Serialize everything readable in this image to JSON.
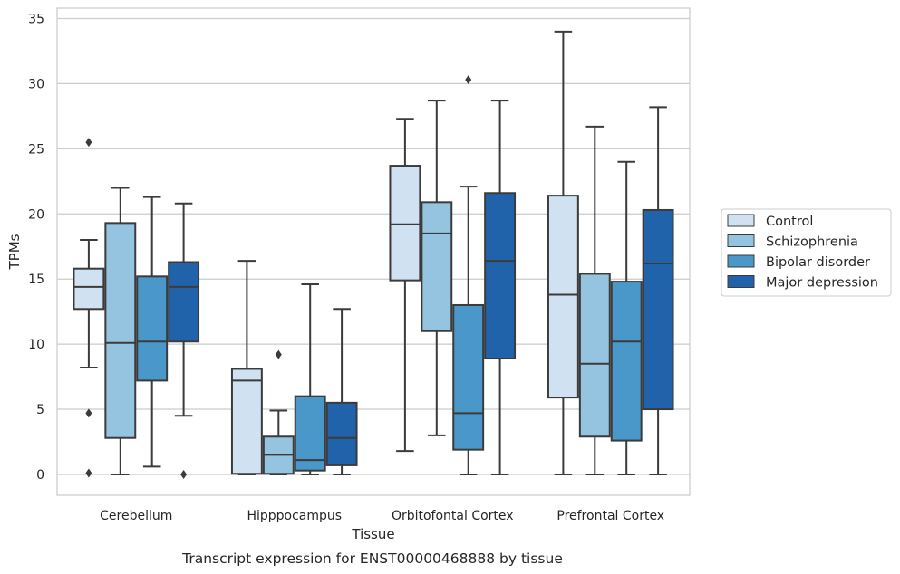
{
  "caption": "Transcript expression for ENST00000468888 by tissue",
  "chart_data": {
    "type": "box",
    "xlabel": "Tissue",
    "ylabel": "TPMs",
    "ylim": [
      -1.6,
      35.8
    ],
    "yticks": [
      0,
      5,
      10,
      15,
      20,
      25,
      30,
      35
    ],
    "grid": "horizontal",
    "legend_position": "right",
    "categories": [
      "Cerebellum",
      "Hipppocampus",
      "Orbitofontal Cortex",
      "Prefrontal Cortex"
    ],
    "series": [
      {
        "name": "Control",
        "color": "#d0e1f2",
        "boxes": [
          {
            "whisker_low": 8.2,
            "q1": 12.7,
            "median": 14.4,
            "q3": 15.8,
            "whisker_high": 18.0,
            "outliers": [
              25.5,
              4.7,
              0.1
            ]
          },
          {
            "whisker_low": 0.0,
            "q1": 0.05,
            "median": 7.2,
            "q3": 8.1,
            "whisker_high": 16.4,
            "outliers": []
          },
          {
            "whisker_low": 1.8,
            "q1": 14.9,
            "median": 19.2,
            "q3": 23.7,
            "whisker_high": 27.3,
            "outliers": []
          },
          {
            "whisker_low": 0.0,
            "q1": 5.9,
            "median": 13.8,
            "q3": 21.4,
            "whisker_high": 34.0,
            "outliers": []
          }
        ]
      },
      {
        "name": "Schizophrenia",
        "color": "#94c4df",
        "boxes": [
          {
            "whisker_low": 0.0,
            "q1": 2.8,
            "median": 10.1,
            "q3": 19.3,
            "whisker_high": 22.0,
            "outliers": []
          },
          {
            "whisker_low": 0.0,
            "q1": 0.05,
            "median": 1.5,
            "q3": 2.9,
            "whisker_high": 4.9,
            "outliers": [
              9.2
            ]
          },
          {
            "whisker_low": 3.0,
            "q1": 11.0,
            "median": 18.5,
            "q3": 20.9,
            "whisker_high": 28.7,
            "outliers": []
          },
          {
            "whisker_low": 0.0,
            "q1": 2.9,
            "median": 8.5,
            "q3": 15.4,
            "whisker_high": 26.7,
            "outliers": []
          }
        ]
      },
      {
        "name": "Bipolar disorder",
        "color": "#4a98c9",
        "boxes": [
          {
            "whisker_low": 0.6,
            "q1": 7.2,
            "median": 10.2,
            "q3": 15.2,
            "whisker_high": 21.3,
            "outliers": []
          },
          {
            "whisker_low": 0.0,
            "q1": 0.3,
            "median": 1.1,
            "q3": 6.0,
            "whisker_high": 14.6,
            "outliers": []
          },
          {
            "whisker_low": 0.0,
            "q1": 1.9,
            "median": 4.7,
            "q3": 13.0,
            "whisker_high": 22.1,
            "outliers": [
              30.3
            ]
          },
          {
            "whisker_low": 0.0,
            "q1": 2.6,
            "median": 10.2,
            "q3": 14.8,
            "whisker_high": 24.0,
            "outliers": []
          }
        ]
      },
      {
        "name": "Major depression",
        "color": "#2163aa",
        "boxes": [
          {
            "whisker_low": 4.5,
            "q1": 10.2,
            "median": 14.4,
            "q3": 16.3,
            "whisker_high": 20.8,
            "outliers": [
              0.0
            ]
          },
          {
            "whisker_low": 0.0,
            "q1": 0.7,
            "median": 2.8,
            "q3": 5.5,
            "whisker_high": 12.7,
            "outliers": []
          },
          {
            "whisker_low": 0.0,
            "q1": 8.9,
            "median": 16.4,
            "q3": 21.6,
            "whisker_high": 28.7,
            "outliers": []
          },
          {
            "whisker_low": 0.0,
            "q1": 5.0,
            "median": 16.2,
            "q3": 20.3,
            "whisker_high": 28.2,
            "outliers": []
          }
        ]
      }
    ]
  }
}
